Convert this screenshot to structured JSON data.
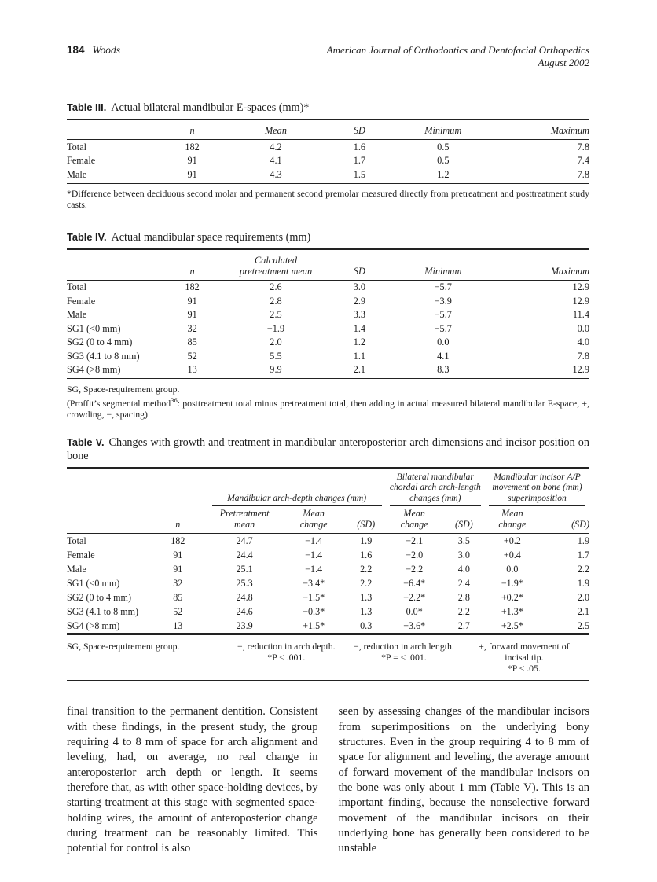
{
  "runhead": {
    "page_number": "184",
    "author": "Woods",
    "journal": "American Journal of Orthodontics and Dentofacial Orthopedics",
    "issue": "August 2002"
  },
  "table3": {
    "label": "Table III.",
    "title": "Actual bilateral mandibular E-spaces (mm)*",
    "columns": [
      "",
      "n",
      "Mean",
      "SD",
      "Minimum",
      "Maximum"
    ],
    "rows": [
      [
        "Total",
        "182",
        "4.2",
        "1.6",
        "0.5",
        "7.8"
      ],
      [
        "Female",
        "91",
        "4.1",
        "1.7",
        "0.5",
        "7.4"
      ],
      [
        "Male",
        "91",
        "4.3",
        "1.5",
        "1.2",
        "7.8"
      ]
    ],
    "footnote": "*Difference between deciduous second molar and permanent second premolar measured directly from pretreatment and posttreatment study casts."
  },
  "table4": {
    "label": "Table IV.",
    "title": "Actual mandibular space requirements (mm)",
    "columns": [
      "",
      "n",
      "Calculated pretreatment mean",
      "SD",
      "Minimum",
      "Maximum"
    ],
    "rows": [
      [
        "Total",
        "182",
        "2.6",
        "3.0",
        "−5.7",
        "12.9"
      ],
      [
        "Female",
        "91",
        "2.8",
        "2.9",
        "−3.9",
        "12.9"
      ],
      [
        "Male",
        "91",
        "2.5",
        "3.3",
        "−5.7",
        "11.4"
      ],
      [
        "SG1 (<0 mm)",
        "32",
        "−1.9",
        "1.4",
        "−5.7",
        "0.0"
      ],
      [
        "SG2 (0 to 4 mm)",
        "85",
        "2.0",
        "1.2",
        "0.0",
        "4.0"
      ],
      [
        "SG3 (4.1 to 8 mm)",
        "52",
        "5.5",
        "1.1",
        "4.1",
        "7.8"
      ],
      [
        "SG4 (>8 mm)",
        "13",
        "9.9",
        "2.1",
        "8.3",
        "12.9"
      ]
    ],
    "footnote1": "SG, Space-requirement group.",
    "footnote2_pre": "(Proffit’s segmental method",
    "footnote2_sup": "36",
    "footnote2_post": ": posttreatment total minus pretreatment total, then adding in actual measured bilateral mandibular E-space, +, crowding, −, spacing)"
  },
  "table5": {
    "label": "Table V.",
    "title": "Changes with growth and treatment in mandibular anteroposterior arch dimensions and incisor position on bone",
    "groups": [
      "Mandibular arch-depth changes (mm)",
      "Bilateral mandibular chordal arch arch-length changes (mm)",
      "Mandibular incisor A/P movement on bone (mm) superimposition"
    ],
    "subheaders": [
      "",
      "n",
      "Pretreatment mean",
      "Mean change",
      "(SD)",
      "Mean change",
      "(SD)",
      "Mean change",
      "(SD)"
    ],
    "rows": [
      [
        "Total",
        "182",
        "24.7",
        "−1.4",
        "1.9",
        "−2.1",
        "3.5",
        "+0.2",
        "1.9"
      ],
      [
        "Female",
        "91",
        "24.4",
        "−1.4",
        "1.6",
        "−2.0",
        "3.0",
        "+0.4",
        "1.7"
      ],
      [
        "Male",
        "91",
        "25.1",
        "−1.4",
        "2.2",
        "−2.2",
        "4.0",
        "0.0",
        "2.2"
      ],
      [
        "SG1 (<0 mm)",
        "32",
        "25.3",
        "−3.4*",
        "2.2",
        "−6.4*",
        "2.4",
        "−1.9*",
        "1.9"
      ],
      [
        "SG2 (0 to 4 mm)",
        "85",
        "24.8",
        "−1.5*",
        "1.3",
        "−2.2*",
        "2.8",
        "+0.2*",
        "2.0"
      ],
      [
        "SG3 (4.1 to 8 mm)",
        "52",
        "24.6",
        "−0.3*",
        "1.3",
        "0.0*",
        "2.2",
        "+1.3*",
        "2.1"
      ],
      [
        "SG4 (>8 mm)",
        "13",
        "23.9",
        "+1.5*",
        "0.3",
        "+3.6*",
        "2.7",
        "+2.5*",
        "2.5"
      ]
    ],
    "footnotes": {
      "col1_line1": "SG, Space-requirement group.",
      "col2_line1": "−, reduction in arch depth.",
      "col2_line2": "*P ≤ .001.",
      "col3_line1": "−, reduction in arch length.",
      "col3_line2": "*P = ≤ .001.",
      "col4_line1": "+, forward movement of incisal tip.",
      "col4_line2": "*P ≤ .05."
    }
  },
  "body": {
    "left": "final transition to the permanent dentition. Consistent with these findings, in the present study, the group requiring 4 to 8 mm of space for arch alignment and leveling, had, on average, no real change in anteroposterior arch depth or length. It seems therefore that, as with other space-holding devices, by starting treatment at this stage with segmented space-holding wires, the amount of anteroposterior change during treatment can be reasonably limited. This potential for control is also",
    "right": "seen by assessing changes of the mandibular incisors from superimpositions on the underlying bony structures. Even in the group requiring 4 to 8 mm of space for alignment and leveling, the average amount of forward movement of the mandibular incisors on the bone was only about 1 mm (Table V). This is an important finding, because the nonselective forward movement of the mandibular incisors on their underlying bone has generally been considered to be unstable"
  }
}
